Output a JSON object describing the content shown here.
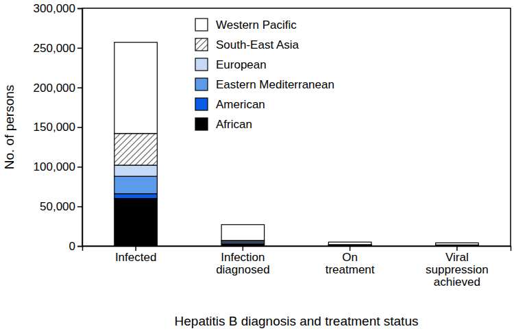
{
  "chart_data": {
    "type": "bar",
    "stacked": true,
    "x_label": "Hepatitis B diagnosis and treatment status",
    "y_label": "No. of persons",
    "categories": [
      "Infected",
      "Infection diagnosed",
      "On treatment",
      "Viral suppression achieved"
    ],
    "series": [
      {
        "name": "African",
        "color": "#000000",
        "values": [
          60000,
          2500,
          500,
          400
        ]
      },
      {
        "name": "American",
        "color": "#0a5ce6",
        "values": [
          6000,
          500,
          200,
          150
        ]
      },
      {
        "name": "Eastern Mediterranean",
        "color": "#5b9bea",
        "values": [
          22000,
          2000,
          300,
          250
        ]
      },
      {
        "name": "European",
        "color": "#c6d9f7",
        "values": [
          14000,
          1500,
          500,
          400
        ]
      },
      {
        "name": "South-East Asia",
        "color": "#555555",
        "marker": "hatch",
        "values": [
          40000,
          500,
          300,
          200
        ]
      },
      {
        "name": "Western Pacific",
        "color": "#ffffff",
        "values": [
          115000,
          20000,
          3200,
          2600
        ]
      }
    ],
    "ylim": [
      0,
      300000
    ],
    "yticks": [
      0,
      {
        "value": 50000,
        "label": "50,000"
      },
      {
        "value": 100000,
        "label": "100,000"
      },
      {
        "value": 150000,
        "label": "150,000"
      },
      {
        "value": 200000,
        "label": "200,000"
      },
      {
        "value": 250000,
        "label": "250,000"
      },
      {
        "value": 300000,
        "label": "300,000"
      }
    ],
    "legend": "top",
    "grid": false
  }
}
